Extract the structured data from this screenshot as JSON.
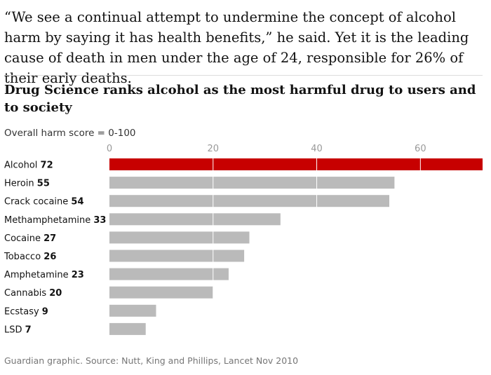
{
  "quote": "“We see a continual attempt to undermine the concept of alcohol harm by saying it has health benefits,” he said. Yet it is the leading cause of death in men under the age of 24, responsible for 26% of their early deaths.",
  "colors": {
    "highlight": "#c70000",
    "bar": "#bababa",
    "grid": "#ffffff"
  },
  "chart_data": {
    "type": "bar",
    "orientation": "horizontal",
    "title": "Drug Science ranks alcohol as the most harmful drug to users and to society",
    "subtitle": "Overall harm score = 0-100",
    "xlim": [
      0,
      72
    ],
    "ticks": [
      0,
      20,
      40,
      60
    ],
    "tick_labels": [
      "0",
      "20",
      "40",
      "60"
    ],
    "categories": [
      "Alcohol",
      "Heroin",
      "Crack cocaine",
      "Methamphetamine",
      "Cocaine",
      "Tobacco",
      "Amphetamine",
      "Cannabis",
      "Ecstasy",
      "LSD"
    ],
    "values": [
      72,
      55,
      54,
      33,
      27,
      26,
      23,
      20,
      9,
      7
    ],
    "value_labels": [
      "72",
      "55",
      "54",
      "33",
      "27",
      "26",
      "23",
      "20",
      "9",
      "7"
    ],
    "highlight": "Alcohol",
    "source": "Guardian graphic. Source: Nutt, King and Phillips, Lancet Nov 2010"
  }
}
